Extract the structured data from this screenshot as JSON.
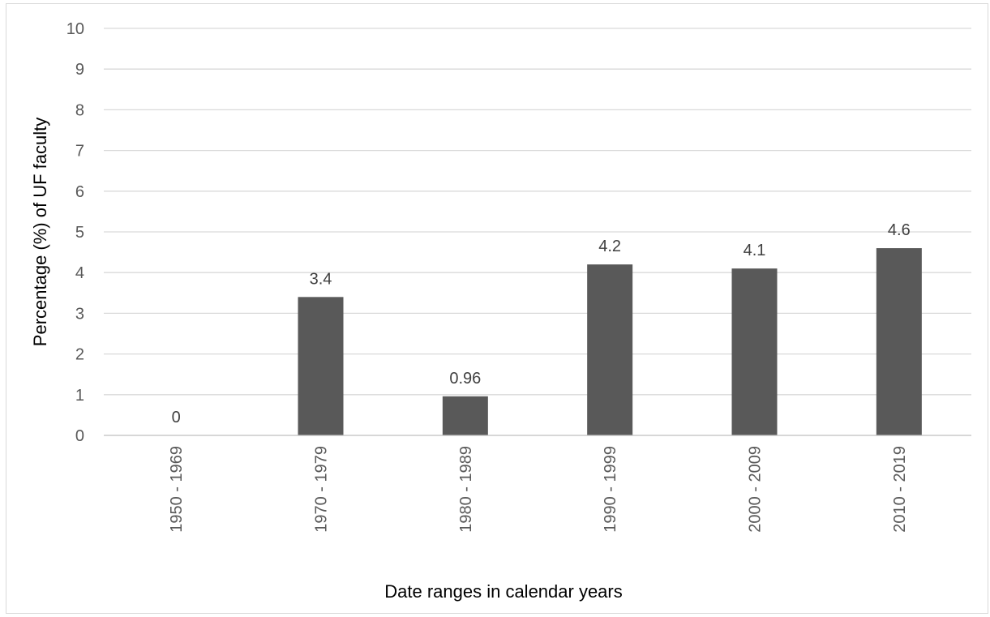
{
  "chart_data": {
    "type": "bar",
    "title": "",
    "xlabel": "Date ranges in calendar years",
    "ylabel": "Percentage (%)  of UF faculty",
    "categories": [
      "1950 - 1969",
      "1970 - 1979",
      "1980 - 1989",
      "1990 - 1999",
      "2000 - 2009",
      "2010 - 2019"
    ],
    "values": [
      0,
      3.4,
      0.96,
      4.2,
      4.1,
      4.6
    ],
    "data_labels": [
      "0",
      "3.4",
      "0.96",
      "4.2",
      "4.1",
      "4.6"
    ],
    "ylim": [
      0,
      10
    ],
    "yticks": [
      0,
      1,
      2,
      3,
      4,
      5,
      6,
      7,
      8,
      9,
      10
    ],
    "grid": true,
    "legend": "none",
    "bar_color": "#595959"
  }
}
